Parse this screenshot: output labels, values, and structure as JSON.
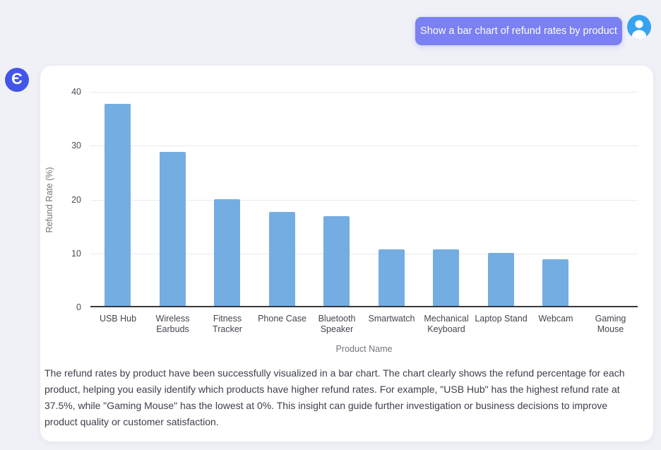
{
  "user_message": {
    "text": "Show a bar chart of refund rates by product"
  },
  "icons": {
    "user_avatar": "person-icon",
    "bot_avatar": "e-logo-icon",
    "bot_avatar_glyph": "Є"
  },
  "colors": {
    "page_background": "#f0f1f7",
    "card_background": "#ffffff",
    "user_bubble": "#7b80f2",
    "user_avatar_blue": "#36a3ee",
    "bot_logo_blue": "#4156e8",
    "bar_fill": "#74ade2",
    "gridline": "#e9eaee",
    "axis_line": "#38383d"
  },
  "chart_data": {
    "type": "bar",
    "title": "",
    "categories": [
      "USB Hub",
      "Wireless Earbuds",
      "Fitness Tracker",
      "Phone Case",
      "Bluetooth Speaker",
      "Smartwatch",
      "Mechanical Keyboard",
      "Laptop Stand",
      "Webcam",
      "Gaming Mouse"
    ],
    "values": [
      37.5,
      28.6,
      19.8,
      17.4,
      16.6,
      10.5,
      10.5,
      9.9,
      8.6,
      0
    ],
    "xlabel": "Product Name",
    "ylabel": "Refund Rate (%)",
    "ylim": [
      0,
      40
    ],
    "yticks": [
      0,
      10,
      20,
      30,
      40
    ],
    "grid": true,
    "legend": "none",
    "bar_color": "#74ade2"
  },
  "assistant": {
    "paragraph": "The refund rates by product have been successfully visualized in a bar chart. The chart clearly shows the refund percentage for each product, helping you easily identify which products have higher refund rates. For example, \"USB Hub\" has the highest refund rate at 37.5%, while \"Gaming Mouse\" has the lowest at 0%. This insight can guide further investigation or business decisions to improve product quality or customer satisfaction."
  }
}
